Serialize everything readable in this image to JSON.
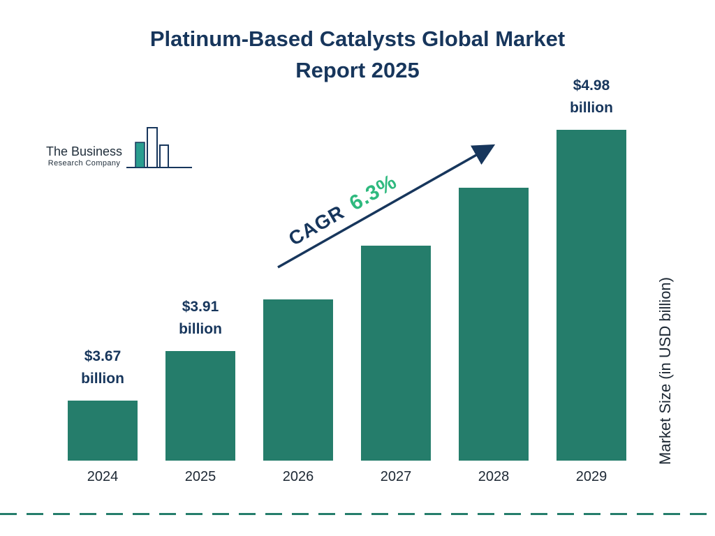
{
  "title": {
    "line1": "Platinum-Based Catalysts Global Market",
    "line2": "Report 2025"
  },
  "logo": {
    "line1": "The Business",
    "line2": "Research Company"
  },
  "cagr": {
    "prefix": "CAGR",
    "value": "6.3%"
  },
  "colors": {
    "bar": "#257d6b",
    "navy": "#17365c",
    "green": "#2eb97e",
    "dark_text": "#1c2733"
  },
  "chart_data": {
    "type": "bar",
    "title": "Platinum-Based Catalysts Global Market Report 2025",
    "categories": [
      "2024",
      "2025",
      "2026",
      "2027",
      "2028",
      "2029"
    ],
    "values": [
      3.67,
      3.91,
      4.16,
      4.42,
      4.7,
      4.98
    ],
    "bar_labels": [
      "$3.67 billion",
      "$3.91 billion",
      "",
      "",
      "",
      "$4.98 billion"
    ],
    "cagr": "6.3%",
    "xlabel": "",
    "ylabel": "Market Size (in USD billion)",
    "units": "USD billion",
    "ylim": [
      3.38,
      5.1
    ],
    "grid": false,
    "legend": "none"
  }
}
